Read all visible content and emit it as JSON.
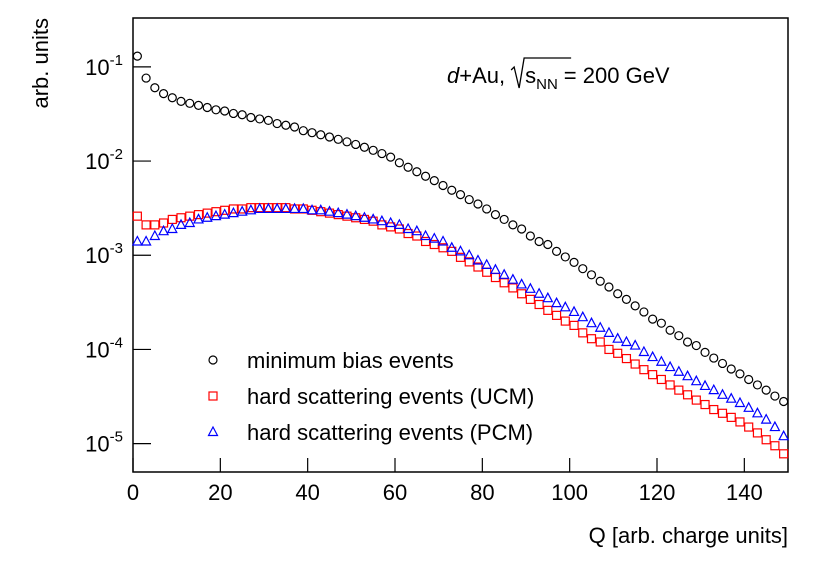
{
  "chart_data": {
    "type": "scatter",
    "annotation": {
      "parts": [
        "d",
        "+Au,",
        "s",
        "NN",
        "= 200 GeV"
      ]
    },
    "ylabel": "arb. units",
    "xlabel": "Q [arb. charge units]",
    "xlim": [
      0,
      150
    ],
    "xticks": [
      0,
      20,
      40,
      60,
      80,
      100,
      120,
      140
    ],
    "ylim": [
      5e-06,
      0.33
    ],
    "log_y": true,
    "yticks": [
      {
        "value": 1e-05,
        "label": "10",
        "exponent": "-5"
      },
      {
        "value": 0.0001,
        "label": "10",
        "exponent": "-4"
      },
      {
        "value": 0.001,
        "label": "10",
        "exponent": "-3"
      },
      {
        "value": 0.01,
        "label": "10",
        "exponent": "-2"
      },
      {
        "value": 0.1,
        "label": "10",
        "exponent": "-1"
      }
    ],
    "legend": "lower left",
    "x": [
      1,
      3,
      5,
      7,
      9,
      11,
      13,
      15,
      17,
      19,
      21,
      23,
      25,
      27,
      29,
      31,
      33,
      35,
      37,
      39,
      41,
      43,
      45,
      47,
      49,
      51,
      53,
      55,
      57,
      59,
      61,
      63,
      65,
      67,
      69,
      71,
      73,
      75,
      77,
      79,
      81,
      83,
      85,
      87,
      89,
      91,
      93,
      95,
      97,
      99,
      101,
      103,
      105,
      107,
      109,
      111,
      113,
      115,
      117,
      119,
      121,
      123,
      125,
      127,
      129,
      131,
      133,
      135,
      137,
      139,
      141,
      143,
      145,
      147,
      149
    ],
    "series": [
      {
        "name": "minimum bias events",
        "color": "#000000",
        "marker": "circle",
        "values": [
          0.13,
          0.076,
          0.06,
          0.052,
          0.047,
          0.043,
          0.041,
          0.039,
          0.037,
          0.035,
          0.034,
          0.032,
          0.031,
          0.029,
          0.028,
          0.027,
          0.025,
          0.024,
          0.023,
          0.021,
          0.02,
          0.019,
          0.018,
          0.017,
          0.016,
          0.015,
          0.014,
          0.013,
          0.012,
          0.011,
          0.0096,
          0.0086,
          0.0077,
          0.0069,
          0.0062,
          0.0055,
          0.0049,
          0.0044,
          0.0039,
          0.0035,
          0.0031,
          0.0027,
          0.0024,
          0.0021,
          0.0019,
          0.0016,
          0.0014,
          0.0013,
          0.0011,
          0.00096,
          0.00084,
          0.00072,
          0.00062,
          0.00053,
          0.00046,
          0.00039,
          0.00034,
          0.00029,
          0.00025,
          0.00021,
          0.00019,
          0.00016,
          0.00014,
          0.00012,
          0.00011,
          9.3e-05,
          8.1e-05,
          7.1e-05,
          6.2e-05,
          5.5e-05,
          4.8e-05,
          4.2e-05,
          3.7e-05,
          3.2e-05,
          2.8e-05
        ]
      },
      {
        "name": "hard scattering events (UCM)",
        "color": "#ff0000",
        "marker": "square",
        "values": [
          0.0026,
          0.0021,
          0.0021,
          0.0022,
          0.0024,
          0.0025,
          0.0026,
          0.0027,
          0.0028,
          0.0029,
          0.003,
          0.0031,
          0.0031,
          0.0032,
          0.0032,
          0.0032,
          0.0032,
          0.0032,
          0.0031,
          0.0031,
          0.003,
          0.0029,
          0.0028,
          0.0027,
          0.0026,
          0.0025,
          0.0024,
          0.0023,
          0.0021,
          0.002,
          0.0019,
          0.0017,
          0.0016,
          0.0014,
          0.0013,
          0.0012,
          0.0011,
          0.00095,
          0.00085,
          0.00075,
          0.00066,
          0.00058,
          0.00051,
          0.00045,
          0.00039,
          0.00034,
          0.0003,
          0.00026,
          0.00023,
          0.0002,
          0.00018,
          0.00015,
          0.00013,
          0.00012,
          0.0001,
          9.1e-05,
          8e-05,
          7e-05,
          6.1e-05,
          5.4e-05,
          4.8e-05,
          4.2e-05,
          3.7e-05,
          3.3e-05,
          2.9e-05,
          2.6e-05,
          2.3e-05,
          2.1e-05,
          1.9e-05,
          1.7e-05,
          1.5e-05,
          1.3e-05,
          1.1e-05,
          9.5e-06,
          7.8e-06
        ]
      },
      {
        "name": "hard scattering events (PCM)",
        "color": "#0000ff",
        "marker": "triangle",
        "values": [
          0.0014,
          0.0014,
          0.0016,
          0.0018,
          0.0019,
          0.0021,
          0.0022,
          0.0024,
          0.0025,
          0.0026,
          0.0027,
          0.0028,
          0.0029,
          0.003,
          0.0031,
          0.0031,
          0.0031,
          0.0031,
          0.0031,
          0.0031,
          0.003,
          0.003,
          0.0029,
          0.0028,
          0.0027,
          0.0026,
          0.0025,
          0.0024,
          0.0023,
          0.0022,
          0.0021,
          0.0019,
          0.0018,
          0.0016,
          0.0015,
          0.0014,
          0.0012,
          0.0011,
          0.001,
          0.00088,
          0.00079,
          0.0007,
          0.00062,
          0.00055,
          0.00049,
          0.00044,
          0.00039,
          0.00035,
          0.00031,
          0.00028,
          0.00025,
          0.00022,
          0.00019,
          0.00017,
          0.00015,
          0.00013,
          0.00012,
          0.00011,
          9.4e-05,
          8.3e-05,
          7.4e-05,
          6.5e-05,
          5.8e-05,
          5.2e-05,
          4.6e-05,
          4.1e-05,
          3.7e-05,
          3.3e-05,
          3e-05,
          2.7e-05,
          2.4e-05,
          2.1e-05,
          1.8e-05,
          1.5e-05,
          1.2e-05
        ]
      }
    ]
  }
}
